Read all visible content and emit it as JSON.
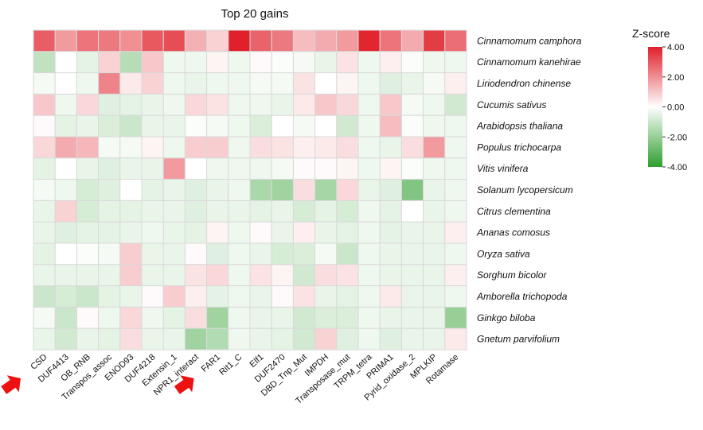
{
  "chart_data": {
    "type": "heatmap",
    "title": "Top 20 gains",
    "colorbar": {
      "title": "Z-score",
      "range": [
        -4,
        4
      ],
      "ticks": [
        "4.00",
        "2.00",
        "0.00",
        "-2.00",
        "-4.00"
      ],
      "low_color": "#2e9e2e",
      "mid_color": "#ffffff",
      "high_color": "#e0202a"
    },
    "rows": [
      "Cinnamomum camphora",
      "Cinnamomum kanehirae",
      "Liriodendron chinense",
      "Cucumis sativus",
      "Arabidopsis thaliana",
      "Populus trichocarpa",
      "Vitis vinifera",
      "Solanum lycopersicum",
      "Citrus clementina",
      "Ananas comosus",
      "Oryza sativa",
      "Sorghum bicolor",
      "Amborella trichopoda",
      "Ginkgo biloba",
      "Gnetum parvifolium"
    ],
    "columns": [
      "CSD",
      "DUF4413",
      "OB_RNB",
      "Transpos_assoc",
      "ENOD93",
      "DUF4218",
      "Extensin_1",
      "NPR1_interact",
      "FAR1",
      "Rit1_C",
      "Elf1",
      "DUF2470",
      "DBD_Tnp_Mut",
      "IMPDH",
      "Transposase_mut",
      "TRPM_tetra",
      "PRIMA1",
      "Pyrid_oxidase_2",
      "MPLKIP",
      "Rotamase"
    ],
    "highlighted_columns": [
      "CSD",
      "FAR1"
    ],
    "values": [
      [
        2.9,
        1.8,
        2.5,
        2.4,
        2.0,
        3.0,
        3.2,
        1.4,
        0.8,
        4.0,
        2.8,
        2.4,
        1.2,
        1.5,
        1.8,
        3.9,
        2.5,
        1.5,
        3.5,
        2.6
      ],
      [
        -1.2,
        0.0,
        -0.5,
        0.8,
        -1.4,
        1.0,
        -0.3,
        -0.3,
        0.2,
        -0.3,
        0.1,
        -0.1,
        -0.2,
        -0.4,
        0.5,
        -0.3,
        0.3,
        -0.1,
        -0.3,
        -0.3
      ],
      [
        -0.2,
        0.0,
        -0.3,
        2.2,
        0.4,
        0.8,
        -0.3,
        -0.4,
        -0.3,
        -0.3,
        -0.2,
        -0.2,
        0.5,
        0.0,
        0.2,
        -0.3,
        -0.6,
        -0.4,
        -0.2,
        0.3
      ],
      [
        1.0,
        -0.3,
        0.7,
        -0.6,
        -0.5,
        -0.4,
        -0.3,
        0.7,
        0.5,
        -0.3,
        -0.3,
        -0.4,
        0.4,
        1.0,
        0.7,
        -0.3,
        1.0,
        -0.2,
        -0.3,
        -0.9
      ],
      [
        0.1,
        -0.5,
        -0.4,
        -0.7,
        -1.0,
        -0.4,
        -0.4,
        -0.1,
        -0.2,
        -0.3,
        -0.7,
        0.0,
        -0.2,
        0.0,
        -0.9,
        -0.3,
        1.2,
        -0.1,
        -0.3,
        -0.3
      ],
      [
        0.7,
        1.5,
        1.3,
        -0.2,
        -0.2,
        0.2,
        -0.3,
        0.9,
        0.9,
        -0.3,
        0.6,
        0.5,
        0.3,
        0.4,
        0.6,
        -0.3,
        -0.4,
        0.6,
        1.8,
        -0.3
      ],
      [
        -0.5,
        0.0,
        -0.4,
        -0.6,
        -0.4,
        -0.4,
        1.8,
        0.0,
        -0.3,
        -0.3,
        -0.3,
        -0.2,
        0.1,
        0.1,
        0.2,
        -0.3,
        0.2,
        -0.1,
        -0.3,
        -0.3
      ],
      [
        -0.2,
        -0.3,
        -0.8,
        -0.6,
        0.0,
        -0.5,
        -0.4,
        -0.6,
        -0.4,
        -0.3,
        -1.6,
        -1.8,
        0.6,
        -1.7,
        0.7,
        -0.4,
        -0.6,
        -2.4,
        -0.4,
        -0.3
      ],
      [
        -0.4,
        0.8,
        -0.8,
        -0.5,
        -0.5,
        -0.4,
        -0.4,
        -0.6,
        -0.4,
        -0.4,
        -0.5,
        -0.4,
        -0.8,
        -0.5,
        -0.8,
        -0.3,
        -0.5,
        0.0,
        -0.4,
        -0.3
      ],
      [
        -0.4,
        -0.6,
        -0.5,
        -0.5,
        -0.4,
        -0.3,
        -0.4,
        -0.5,
        0.2,
        -0.3,
        0.1,
        -0.4,
        0.3,
        -0.4,
        -0.5,
        -0.3,
        -0.5,
        -0.4,
        -0.4,
        0.3
      ],
      [
        -0.5,
        0.0,
        -0.1,
        -0.2,
        0.9,
        -0.4,
        -0.4,
        0.1,
        -0.6,
        -0.3,
        -0.4,
        -0.8,
        -0.7,
        -0.2,
        -1.0,
        -0.3,
        -0.4,
        -0.4,
        -0.4,
        -0.3
      ],
      [
        -0.4,
        -0.4,
        -0.4,
        -0.4,
        0.9,
        -0.4,
        -0.4,
        0.5,
        0.7,
        -0.3,
        0.5,
        0.2,
        -0.9,
        0.6,
        0.5,
        -0.3,
        -0.4,
        -0.4,
        -0.4,
        0.3
      ],
      [
        -1.0,
        -0.8,
        -1.0,
        -0.5,
        -0.4,
        0.1,
        0.9,
        0.3,
        -0.5,
        -0.3,
        -0.4,
        0.1,
        0.5,
        -0.4,
        -0.5,
        -0.3,
        0.4,
        -0.4,
        -0.4,
        -0.3
      ],
      [
        -0.2,
        -1.0,
        0.1,
        -0.3,
        0.7,
        -0.3,
        -0.5,
        0.6,
        -1.8,
        -0.3,
        -0.4,
        -0.4,
        -0.9,
        -0.7,
        -0.7,
        -0.3,
        -0.4,
        -0.4,
        -0.4,
        -2.0
      ],
      [
        -0.4,
        -0.9,
        -0.4,
        -0.5,
        0.6,
        -0.4,
        -0.4,
        -1.8,
        -1.5,
        -0.3,
        -0.4,
        -0.5,
        -0.9,
        0.8,
        -0.6,
        -0.3,
        -0.6,
        -0.4,
        -0.4,
        0.4
      ]
    ]
  },
  "arrow_icon": "right-arrow-icon",
  "arrow_color": "#ee1111"
}
